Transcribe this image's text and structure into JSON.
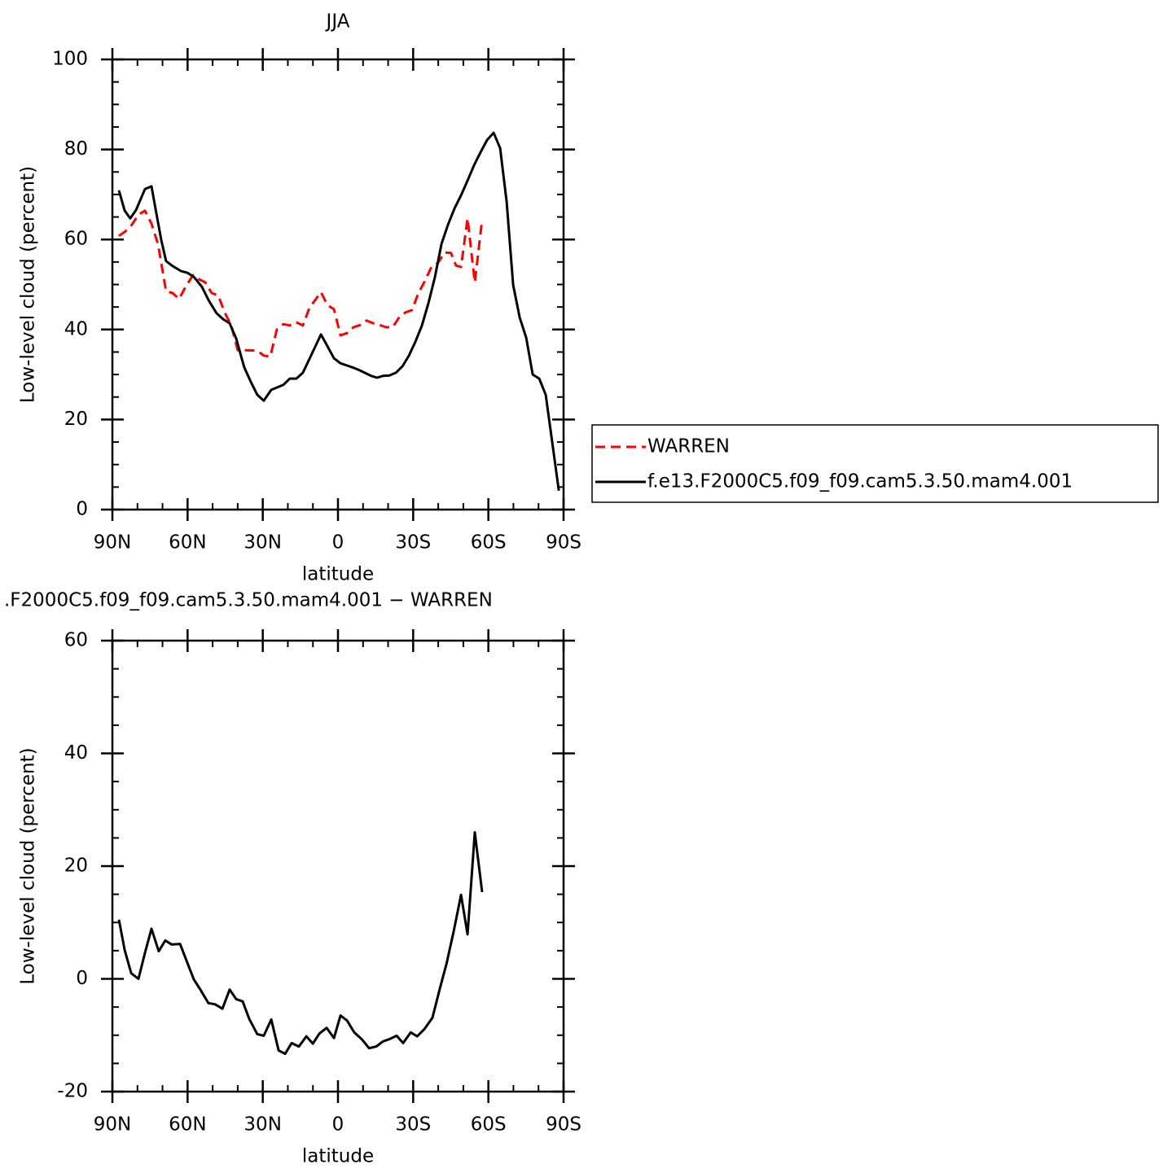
{
  "chart_data": [
    {
      "type": "line",
      "title": "JJA",
      "x_label": "latitude",
      "y_label": "Low-level cloud (percent)",
      "xlim": [
        90,
        -90
      ],
      "ylim": [
        0,
        100
      ],
      "xticks": [
        {
          "value": 90,
          "label": "90N"
        },
        {
          "value": 60,
          "label": "60N"
        },
        {
          "value": 30,
          "label": "30N"
        },
        0,
        {
          "value": -30,
          "label": "30S"
        },
        {
          "value": -60,
          "label": "60S"
        },
        {
          "value": -90,
          "label": "90S"
        }
      ],
      "yticks": [
        0,
        20,
        40,
        60,
        80,
        100
      ],
      "legend": "right",
      "series": [
        {
          "name": "WARREN",
          "color": "#ff0000",
          "dashed": true,
          "x": [
            87.4,
            84.8,
            82.2,
            79.6,
            77.0,
            74.4,
            71.8,
            68.6,
            66.0,
            63.4,
            60.8,
            57.8,
            55.6,
            53.0,
            50.4,
            47.8,
            45.2,
            42.6,
            40.0,
            37.4,
            32.2,
            29.6,
            27.0,
            24.4,
            21.8,
            19.2,
            16.6,
            14.0,
            11.4,
            6.8,
            4.2,
            1.6,
            -1.0,
            -3.6,
            -6.2,
            -8.8,
            -11.4,
            -14.0,
            -16.6,
            -19.2,
            -21.8,
            -24.4,
            -26.9,
            -29.5,
            -32.1,
            -34.7,
            -37.3,
            -39.9,
            -42.5,
            -45.1,
            -47.1,
            -49.1,
            -51.7,
            -54.6,
            -57.5
          ],
          "values": [
            60.8,
            61.8,
            63.3,
            65.5,
            66.4,
            63.5,
            59.0,
            48.5,
            48.1,
            46.8,
            49.5,
            52.1,
            51.2,
            50.5,
            48.1,
            47.6,
            43.8,
            40.9,
            35.4,
            35.4,
            35.3,
            34.2,
            34.0,
            40.0,
            41.2,
            40.9,
            41.6,
            40.9,
            44.8,
            48.3,
            45.4,
            44.5,
            38.7,
            39.2,
            40.5,
            41.0,
            42.0,
            41.4,
            41.0,
            40.5,
            40.5,
            42.7,
            43.8,
            44.3,
            48.1,
            50.8,
            53.9,
            54.8,
            57.1,
            57.0,
            54.2,
            53.9,
            64.7,
            50.5,
            64.4
          ]
        },
        {
          "name": "f.e13.F2000C5.f09_f09.cam5.3.50.mam4.001",
          "color": "#000000",
          "dashed": false,
          "x": [
            87.4,
            85.1,
            82.9,
            80.6,
            77.0,
            74.4,
            72.1,
            70.5,
            68.6,
            66.0,
            62.7,
            60.1,
            57.5,
            54.3,
            51.4,
            48.4,
            45.8,
            43.2,
            40.6,
            37.4,
            34.8,
            32.2,
            29.6,
            26.6,
            24.4,
            21.8,
            19.2,
            16.6,
            14.0,
            11.7,
            6.8,
            4.6,
            1.6,
            -1.0,
            -3.6,
            -6.2,
            -8.8,
            -11.4,
            -13.3,
            -15.6,
            -17.9,
            -20.5,
            -23.1,
            -25.7,
            -28.3,
            -30.9,
            -33.5,
            -36.1,
            -38.7,
            -41.3,
            -43.9,
            -46.5,
            -49.1,
            -51.7,
            -54.3,
            -56.9,
            -59.5,
            -62.1,
            -64.7,
            -67.3,
            -69.9,
            -72.5,
            -75.1,
            -77.7,
            -80.3,
            -82.9,
            -88.1
          ],
          "values": [
            70.9,
            66.4,
            64.7,
            66.5,
            71.2,
            71.8,
            64.7,
            59.9,
            55.2,
            54.1,
            53.0,
            52.6,
            51.7,
            49.5,
            46.3,
            43.6,
            42.3,
            41.4,
            38.0,
            31.6,
            28.4,
            25.5,
            24.2,
            26.6,
            27.1,
            27.7,
            29.1,
            29.1,
            30.4,
            33.1,
            38.9,
            36.7,
            33.6,
            32.5,
            32.0,
            31.5,
            30.9,
            30.2,
            29.7,
            29.3,
            29.7,
            29.8,
            30.4,
            31.8,
            34.2,
            37.3,
            40.9,
            45.9,
            51.7,
            59.0,
            63.3,
            66.9,
            69.8,
            73.1,
            76.5,
            79.4,
            82.1,
            83.7,
            80.3,
            68.4,
            49.9,
            42.7,
            38.2,
            30.0,
            29.1,
            25.5,
            4.2
          ]
        }
      ]
    },
    {
      "type": "line",
      "title": ".F2000C5.f09_f09.cam5.3.50.mam4.001 − WARREN",
      "x_label": "latitude",
      "y_label": "Low-level cloud (percent)",
      "xlim": [
        90,
        -90
      ],
      "ylim": [
        -20,
        60
      ],
      "xticks": [
        {
          "value": 90,
          "label": "90N"
        },
        {
          "value": 60,
          "label": "60N"
        },
        {
          "value": 30,
          "label": "30N"
        },
        0,
        {
          "value": -30,
          "label": "30S"
        },
        {
          "value": -60,
          "label": "60S"
        },
        {
          "value": -90,
          "label": "90S"
        }
      ],
      "yticks": [
        -20,
        0,
        20,
        40,
        60
      ],
      "series": [
        {
          "color": "#000000",
          "dashed": false,
          "x": [
            87.4,
            85.1,
            82.5,
            79.6,
            77.0,
            74.4,
            71.5,
            68.9,
            66.3,
            63.0,
            60.4,
            57.5,
            54.9,
            51.7,
            49.1,
            46.1,
            43.2,
            40.6,
            38.0,
            35.4,
            32.2,
            29.6,
            26.6,
            23.7,
            21.1,
            18.5,
            15.6,
            12.6,
            10.0,
            7.4,
            4.5,
            1.6,
            -1.0,
            -3.6,
            -6.5,
            -9.5,
            -12.4,
            -15.3,
            -17.9,
            -20.5,
            -23.4,
            -26.0,
            -29.0,
            -31.6,
            -34.5,
            -37.7,
            -40.7,
            -43.3,
            -46.2,
            -49.1,
            -51.7,
            -54.6,
            -57.5
          ],
          "values": [
            10.5,
            5.1,
            1.0,
            0.0,
            4.6,
            8.9,
            4.9,
            6.8,
            6.1,
            6.2,
            3.2,
            -0.1,
            -1.9,
            -4.3,
            -4.5,
            -5.3,
            -1.9,
            -3.6,
            -4.0,
            -7.1,
            -9.8,
            -10.1,
            -7.2,
            -12.7,
            -13.3,
            -11.4,
            -12.0,
            -10.2,
            -11.5,
            -9.7,
            -8.7,
            -10.5,
            -6.5,
            -7.4,
            -9.5,
            -10.7,
            -12.3,
            -12.0,
            -11.1,
            -10.7,
            -10.1,
            -11.4,
            -9.5,
            -10.2,
            -8.9,
            -6.9,
            -1.6,
            2.7,
            8.5,
            14.9,
            7.9,
            26.0,
            15.4
          ]
        }
      ]
    }
  ]
}
